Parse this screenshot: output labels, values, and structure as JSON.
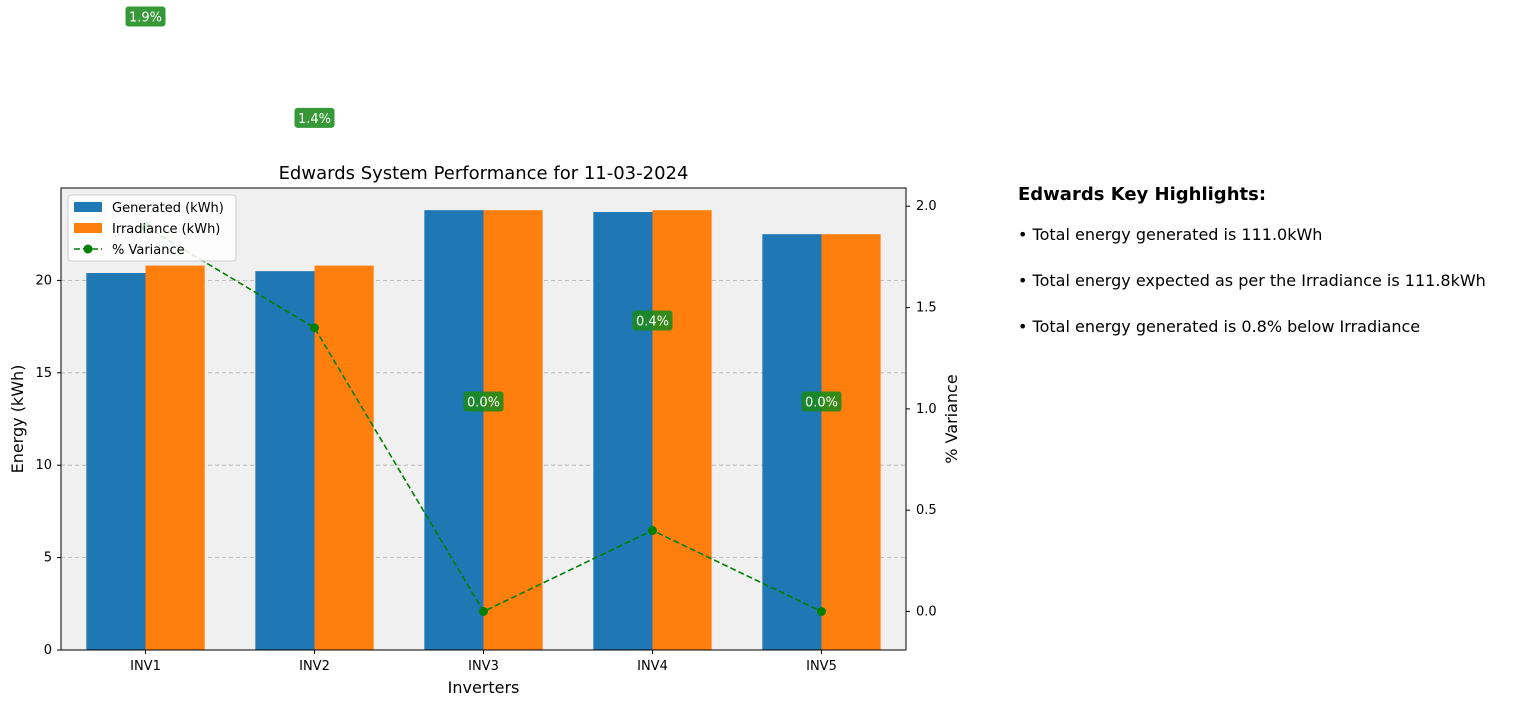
{
  "chart_data": {
    "type": "bar",
    "title": "Edwards System Performance for 11-03-2024",
    "xlabel": "Inverters",
    "ylabel": "Energy (kWh)",
    "y2label": "% Variance",
    "categories": [
      "INV1",
      "INV2",
      "INV3",
      "INV4",
      "INV5"
    ],
    "series": [
      {
        "name": "Generated (kWh)",
        "values": [
          20.4,
          20.5,
          23.8,
          23.7,
          22.5
        ],
        "color": "#1f77b4"
      },
      {
        "name": "Irradiance (kWh)",
        "values": [
          20.8,
          20.8,
          23.8,
          23.8,
          22.5
        ],
        "color": "#ff7f0e"
      }
    ],
    "line_series": {
      "name": "% Variance",
      "values": [
        1.9,
        1.4,
        0.0,
        0.4,
        0.0
      ],
      "labels": [
        "1.9%",
        "1.4%",
        "0.0%",
        "0.4%",
        "0.0%"
      ],
      "color": "#008000",
      "axis": "right"
    },
    "ylim": [
      0,
      25
    ],
    "yticks": [
      0,
      5,
      10,
      15,
      20
    ],
    "y2lim": [
      -0.19,
      2.09
    ],
    "y2ticks": [
      "0.0",
      "0.5",
      "1.0",
      "1.5",
      "2.0"
    ],
    "grid": "horizontal dashed",
    "legend_position": "top-left"
  },
  "highlights": {
    "title": "Edwards Key Highlights:",
    "items": [
      "• Total energy generated is 111.0kWh",
      "• Total energy expected as per the Irradiance is 111.8kWh",
      "• Total energy generated is 0.8% below Irradiance"
    ]
  }
}
